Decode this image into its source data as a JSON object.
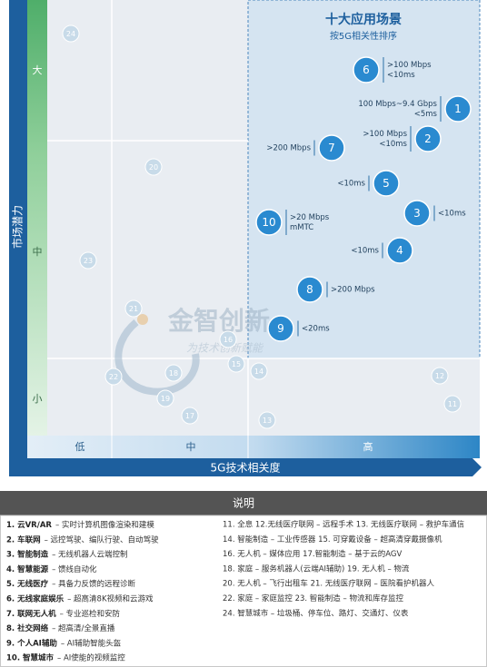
{
  "chart": {
    "title": "十大应用场景",
    "subtitle": "按5G相关性排序",
    "y_axis_label": "市场潜力",
    "y_levels": [
      "大",
      "中",
      "小"
    ],
    "x_axis_label": "5G技术相关度",
    "x_levels": [
      "低",
      "中",
      "高"
    ],
    "major_color": "#2a8ad0",
    "minor_color": "#c8dbe9",
    "major_nodes": [
      {
        "label": "1",
        "annotation": [
          "100 Mbps~9.4 Gbps",
          "<5ms"
        ]
      },
      {
        "label": "2",
        "annotation": [
          ">100 Mbps",
          "<10ms"
        ]
      },
      {
        "label": "3",
        "annotation": [
          "<10ms"
        ]
      },
      {
        "label": "4",
        "annotation": [
          "<10ms"
        ]
      },
      {
        "label": "5",
        "annotation": [
          "<10ms"
        ]
      },
      {
        "label": "6",
        "annotation": [
          ">100 Mbps",
          "<10ms"
        ]
      },
      {
        "label": "7",
        "annotation": [
          ">200 Mbps"
        ]
      },
      {
        "label": "8",
        "annotation": [
          ">200 Mbps"
        ]
      },
      {
        "label": "9",
        "annotation": [
          "<20ms"
        ]
      },
      {
        "label": "10",
        "annotation": [
          ">20 Mbps",
          "mMTC"
        ]
      }
    ],
    "minor_nodes": [
      "11",
      "12",
      "13",
      "14",
      "15",
      "16",
      "17",
      "18",
      "19",
      "20",
      "21",
      "22",
      "23",
      "24"
    ]
  },
  "watermark": {
    "brand": "金智创新",
    "slogan": "为技术创新赋能"
  },
  "legend": {
    "title": "说明",
    "left": [
      {
        "name": "1. 云VR/AR",
        "desc": "– 实时计算机图像渲染和建模"
      },
      {
        "name": "2. 车联网",
        "desc": "– 远控驾驶、编队行驶、自动驾驶"
      },
      {
        "name": "3. 智能制造",
        "desc": "– 无线机器人云端控制"
      },
      {
        "name": "4. 智慧能源",
        "desc": "– 馈线自动化"
      },
      {
        "name": "5. 无线医疗",
        "desc": "– 具备力反馈的远程诊断"
      },
      {
        "name": "6. 无线家庭娱乐",
        "desc": "– 超高清8K视频和云游戏"
      },
      {
        "name": "7. 联网无人机",
        "desc": "– 专业巡检和安防"
      },
      {
        "name": "8. 社交网络",
        "desc": "– 超高清/全景直播"
      },
      {
        "name": "9. 个人AI辅助",
        "desc": "– AI辅助智能头盔"
      },
      {
        "name": "10. 智慧城市",
        "desc": "– AI使能的视频监控"
      }
    ],
    "right": [
      "11. 全息   12.无线医疗联网 – 远程手术   13. 无线医疗联网 – 救护车通信",
      "14. 智能制造 – 工业传感器   15. 可穿戴设备 – 超高清穿戴摄像机",
      "16. 无人机 – 媒体应用   17.智能制造 – 基于云的AGV",
      "18. 家庭 – 服务机器人(云端AI辅助)   19. 无人机 – 物流",
      "20. 无人机 – 飞行出租车   21. 无线医疗联网 – 医院看护机器人",
      "22. 家庭 – 家庭监控   23. 智能制造 – 物流和库存监控",
      "24. 智慧城市 – 垃圾桶、停车位、路灯、交通灯、仪表"
    ]
  }
}
